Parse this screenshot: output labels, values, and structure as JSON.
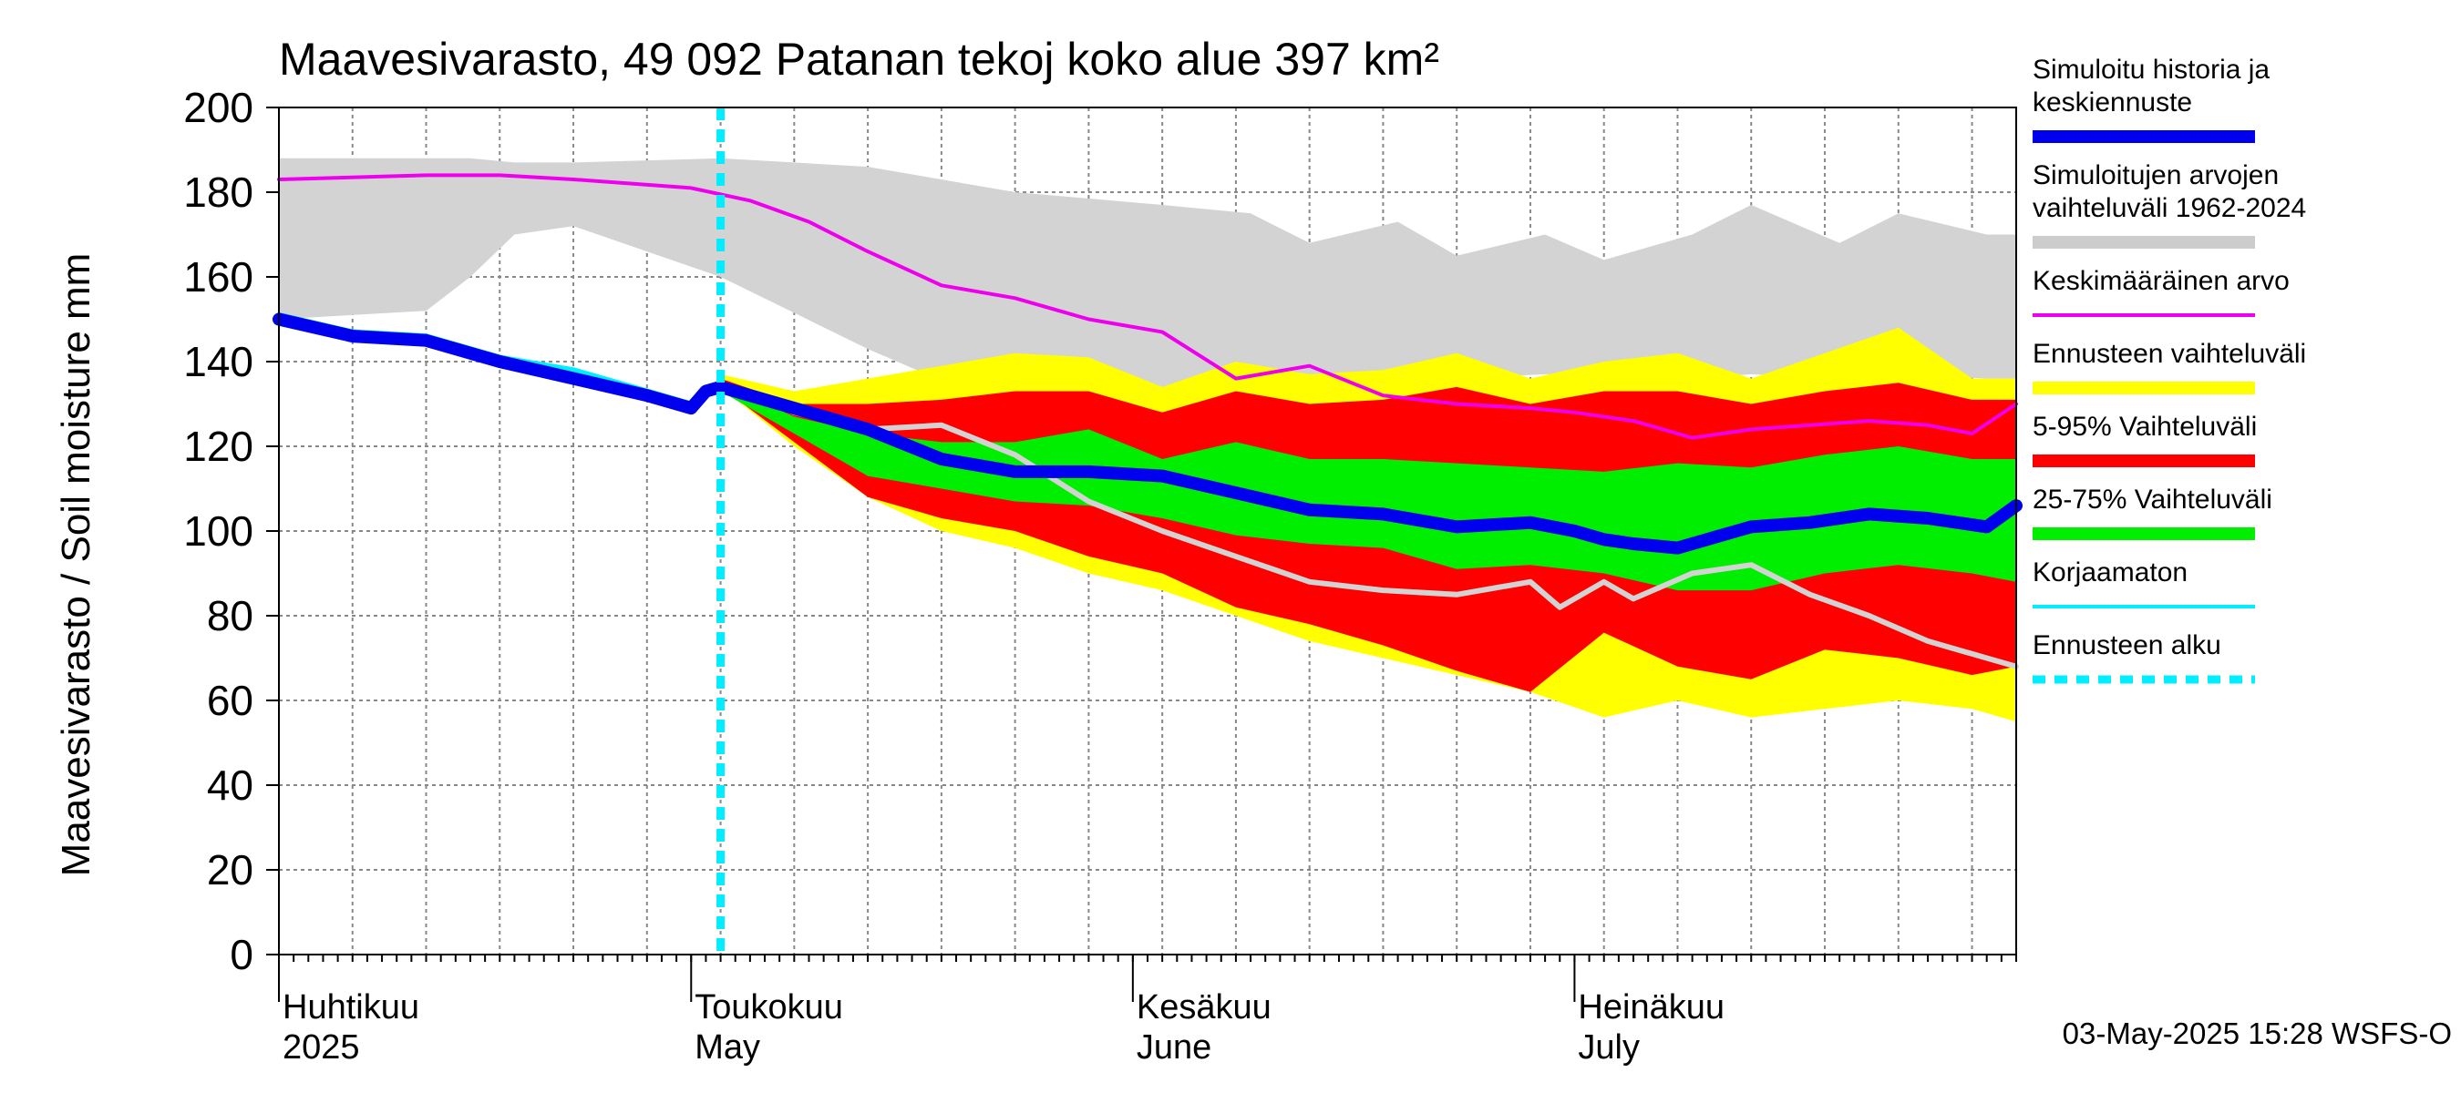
{
  "chart_data": {
    "type": "area",
    "title": "Maavesivarasto, 49 092 Patanan tekoj koko alue 397 km²",
    "ylabel": "Maavesivarasto / Soil moisture   mm",
    "ylim": [
      0,
      200
    ],
    "yticks": [
      "0",
      "20",
      "40",
      "60",
      "80",
      "100",
      "120",
      "140",
      "160",
      "180",
      "200"
    ],
    "x_range_days": [
      0,
      118
    ],
    "months": [
      {
        "fi": "Huhtikuu",
        "en": "2025",
        "day": 0
      },
      {
        "fi": "Toukokuu",
        "en": "May",
        "day": 28
      },
      {
        "fi": "Kesäkuu",
        "en": "June",
        "day": 58
      },
      {
        "fi": "Heinäkuu",
        "en": "July",
        "day": 88
      }
    ],
    "forecast_start_day": 30,
    "timestamp": "03-May-2025 15:28 WSFS-O",
    "legend": [
      {
        "label_lines": [
          "Simuloitu historia ja",
          "keskiennuste"
        ],
        "color": "#0000ee",
        "style": "thick"
      },
      {
        "label_lines": [
          "Simuloitujen arvojen",
          "vaihteluväli 1962-2024"
        ],
        "color": "#cccccc",
        "style": "band"
      },
      {
        "label_lines": [
          "Keskimääräinen arvo"
        ],
        "color": "#ee00ee",
        "style": "line"
      },
      {
        "label_lines": [
          "Ennusteen vaihteluväli"
        ],
        "color": "#ffff00",
        "style": "band"
      },
      {
        "label_lines": [
          "5-95% Vaihteluväli"
        ],
        "color": "#ff0000",
        "style": "band"
      },
      {
        "label_lines": [
          "25-75% Vaihteluväli"
        ],
        "color": "#00ee00",
        "style": "band"
      },
      {
        "label_lines": [
          "Korjaamaton"
        ],
        "color": "#00eeff",
        "style": "line"
      },
      {
        "label_lines": [
          "Ennusteen alku"
        ],
        "color": "#00eeff",
        "style": "dashed"
      }
    ],
    "series": {
      "history_range": {
        "days": [
          0,
          10,
          13,
          16,
          20,
          30,
          40,
          50,
          60,
          66,
          70,
          76,
          80,
          86,
          90,
          96,
          100,
          106,
          110,
          116,
          118
        ],
        "upper": [
          188,
          188,
          188,
          187,
          187,
          188,
          186,
          180,
          177,
          175,
          168,
          173,
          165,
          170,
          164,
          170,
          177,
          168,
          175,
          170,
          170
        ],
        "lower": [
          150,
          152,
          160,
          170,
          172,
          160,
          143,
          128,
          124,
          126,
          134,
          136,
          136,
          137,
          137,
          136,
          137,
          136,
          137,
          136,
          136
        ]
      },
      "forecast_range": {
        "days": [
          30,
          35,
          40,
          45,
          50,
          55,
          60,
          65,
          70,
          75,
          80,
          85,
          90,
          95,
          100,
          105,
          110,
          115,
          118
        ],
        "upper": [
          137,
          133,
          136,
          139,
          142,
          141,
          134,
          140,
          137,
          138,
          142,
          136,
          140,
          142,
          136,
          142,
          148,
          136,
          136
        ],
        "lower": [
          134,
          120,
          108,
          100,
          96,
          90,
          86,
          80,
          74,
          70,
          66,
          62,
          56,
          60,
          56,
          58,
          60,
          58,
          55
        ]
      },
      "p5_95": {
        "days": [
          30,
          35,
          40,
          45,
          50,
          55,
          60,
          65,
          70,
          75,
          80,
          85,
          90,
          95,
          100,
          105,
          110,
          115,
          118
        ],
        "upper": [
          136,
          130,
          130,
          131,
          133,
          133,
          128,
          133,
          130,
          131,
          134,
          130,
          133,
          133,
          130,
          133,
          135,
          131,
          131
        ],
        "lower": [
          134,
          121,
          108,
          103,
          100,
          94,
          90,
          82,
          78,
          73,
          67,
          62,
          76,
          68,
          65,
          72,
          70,
          66,
          68
        ]
      },
      "p25_75": {
        "days": [
          30,
          35,
          40,
          45,
          50,
          55,
          60,
          65,
          70,
          75,
          80,
          85,
          90,
          95,
          100,
          105,
          110,
          115,
          118
        ],
        "upper": [
          135,
          127,
          123,
          121,
          121,
          124,
          117,
          121,
          117,
          117,
          116,
          115,
          114,
          116,
          115,
          118,
          120,
          117,
          117
        ],
        "lower": [
          133,
          123,
          113,
          110,
          107,
          106,
          103,
          99,
          97,
          96,
          91,
          92,
          90,
          86,
          86,
          90,
          92,
          90,
          88
        ]
      },
      "mean": {
        "days": [
          0,
          10,
          15,
          20,
          28,
          32,
          36,
          40,
          45,
          50,
          55,
          60,
          65,
          70,
          75,
          80,
          85,
          88,
          92,
          96,
          100,
          104,
          108,
          112,
          115,
          118
        ],
        "values": [
          183,
          184,
          184,
          183,
          181,
          178,
          173,
          166,
          158,
          155,
          150,
          147,
          136,
          139,
          132,
          130,
          129,
          128,
          126,
          122,
          124,
          125,
          126,
          125,
          123,
          130
        ]
      },
      "median": {
        "days": [
          0,
          5,
          10,
          15,
          20,
          25,
          28,
          29,
          30,
          35,
          40,
          45,
          50,
          55,
          60,
          65,
          70,
          75,
          80,
          85,
          88,
          90,
          92,
          95,
          98,
          100,
          104,
          108,
          112,
          116,
          118
        ],
        "values": [
          150,
          146,
          145,
          140,
          136,
          132,
          129,
          133,
          134,
          129,
          124,
          117,
          114,
          114,
          113,
          109,
          105,
          104,
          101,
          102,
          100,
          98,
          97,
          96,
          99,
          101,
          102,
          104,
          103,
          101,
          106
        ]
      },
      "uncorrected": {
        "days": [
          0,
          5,
          10,
          15,
          20,
          25,
          28
        ],
        "values": [
          151,
          147,
          146,
          141,
          138,
          133,
          130
        ]
      },
      "reference": {
        "days": [
          30,
          35,
          40,
          45,
          50,
          55,
          60,
          65,
          70,
          75,
          80,
          85,
          87,
          90,
          92,
          96,
          100,
          104,
          108,
          112,
          116,
          118
        ],
        "values": [
          135,
          128,
          124,
          125,
          118,
          107,
          100,
          94,
          88,
          86,
          85,
          88,
          82,
          88,
          84,
          90,
          92,
          85,
          80,
          74,
          70,
          68
        ]
      }
    }
  }
}
